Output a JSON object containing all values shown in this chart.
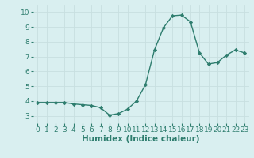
{
  "x": [
    0,
    1,
    2,
    3,
    4,
    5,
    6,
    7,
    8,
    9,
    10,
    11,
    12,
    13,
    14,
    15,
    16,
    17,
    18,
    19,
    20,
    21,
    22,
    23
  ],
  "y": [
    3.9,
    3.9,
    3.9,
    3.9,
    3.8,
    3.75,
    3.7,
    3.55,
    3.05,
    3.15,
    3.45,
    4.0,
    5.1,
    7.45,
    8.95,
    9.75,
    9.8,
    9.35,
    7.25,
    6.5,
    6.6,
    7.1,
    7.45,
    7.25
  ],
  "line_color": "#2e7d6e",
  "marker": "D",
  "marker_size": 2.2,
  "bg_color": "#d9eff0",
  "grid_color": "#c8dfe0",
  "xlabel": "Humidex (Indice chaleur)",
  "xlabel_fontsize": 7.5,
  "xlabel_weight": "bold",
  "ylim": [
    2.5,
    10.5
  ],
  "xlim": [
    -0.5,
    23.5
  ],
  "yticks": [
    3,
    4,
    5,
    6,
    7,
    8,
    9,
    10
  ],
  "xticks": [
    0,
    1,
    2,
    3,
    4,
    5,
    6,
    7,
    8,
    9,
    10,
    11,
    12,
    13,
    14,
    15,
    16,
    17,
    18,
    19,
    20,
    21,
    22,
    23
  ],
  "tick_fontsize": 6.5,
  "line_width": 1.0
}
